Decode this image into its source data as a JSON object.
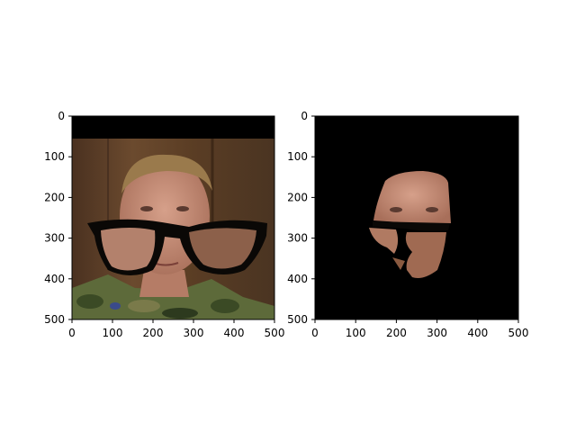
{
  "panels": [
    {
      "name": "left-panel",
      "image_description_icon": "photo-face-with-glasses-overlay",
      "x_ticks": [
        "0",
        "100",
        "200",
        "300",
        "400",
        "500"
      ],
      "y_ticks": [
        "0",
        "100",
        "200",
        "300",
        "400",
        "500"
      ]
    },
    {
      "name": "right-panel",
      "image_description_icon": "segmented-face-on-black",
      "x_ticks": [
        "0",
        "100",
        "200",
        "300",
        "400",
        "500"
      ],
      "y_ticks": [
        "0",
        "100",
        "200",
        "300",
        "400",
        "500"
      ]
    }
  ],
  "axes": {
    "x_range": [
      0,
      500
    ],
    "y_range": [
      0,
      500
    ]
  },
  "colors": {
    "background": "#ffffff",
    "wood": "#5a3d24",
    "skin": "#c9907a",
    "hair": "#9a7a4c",
    "camo_green": "#5d6a3a",
    "black": "#000000"
  }
}
